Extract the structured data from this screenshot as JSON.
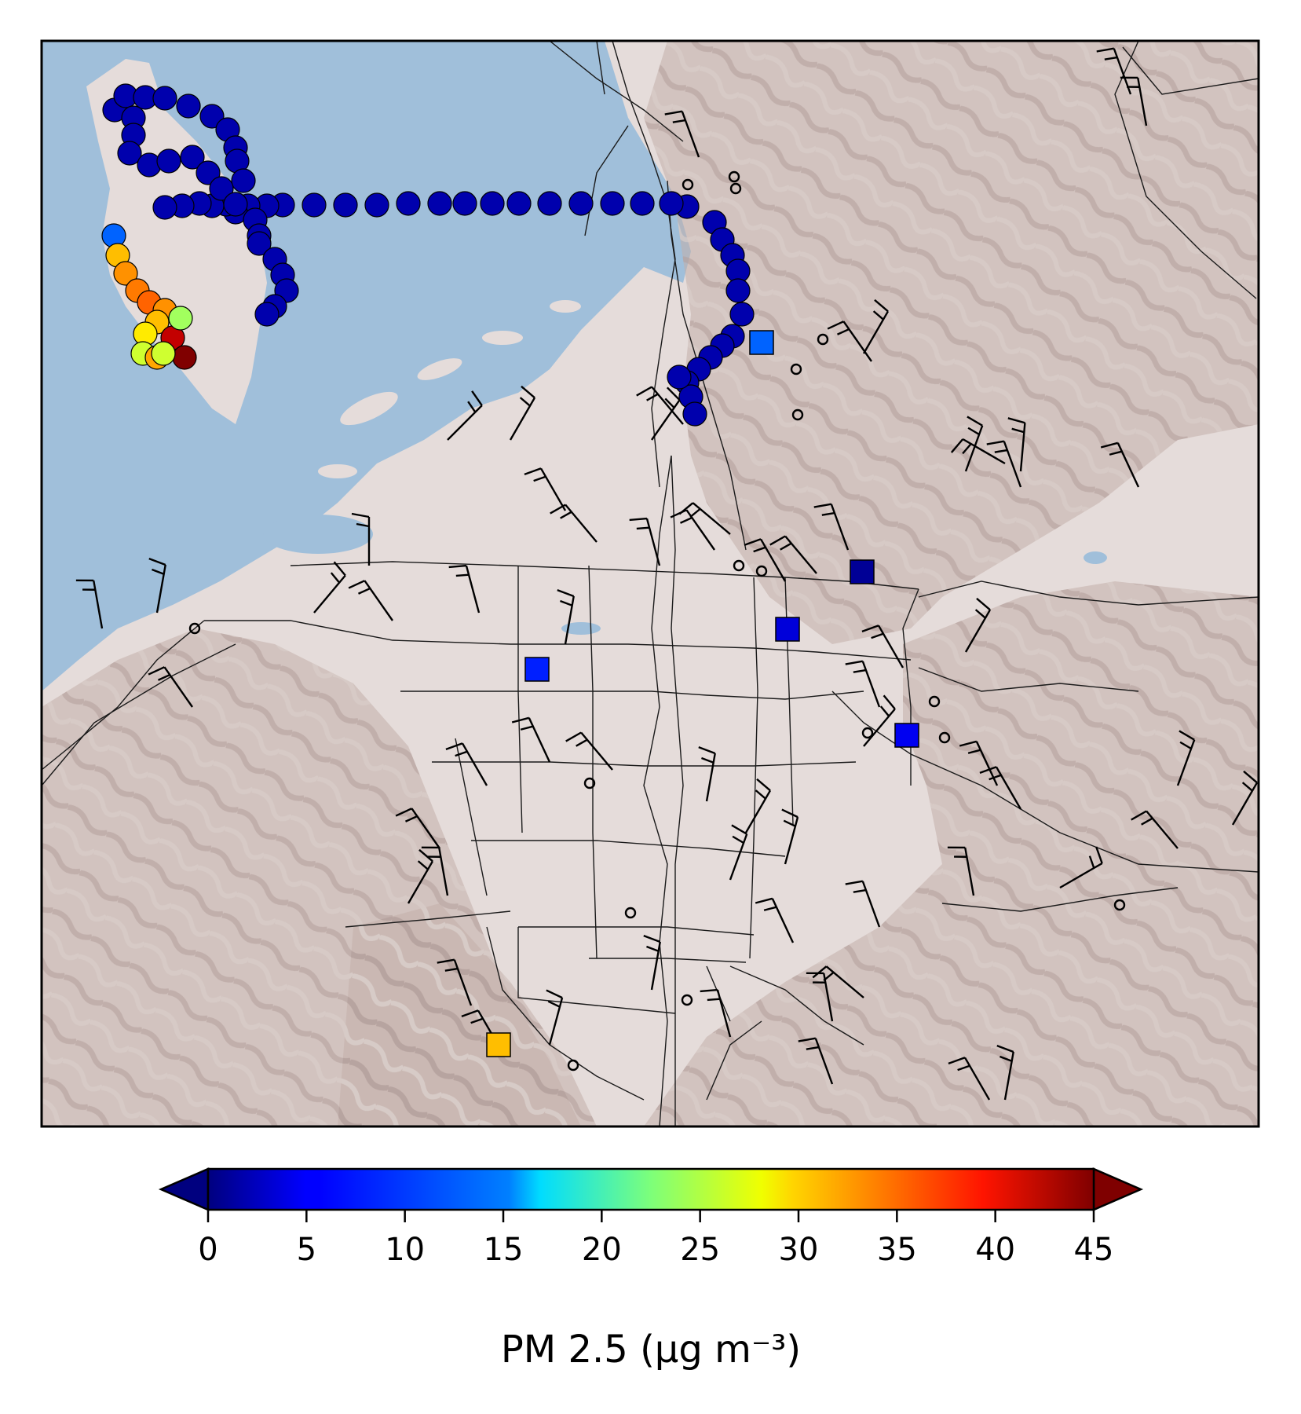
{
  "colorbar": {
    "label": "PM 2.5 (μg m⁻³)",
    "min": 0,
    "max": 45,
    "ticks": [
      "0",
      "5",
      "10",
      "15",
      "20",
      "25",
      "30",
      "35",
      "40",
      "45"
    ],
    "colormap": "jet",
    "extend": "both"
  },
  "map": {
    "water_color": "#a0bfda",
    "land_color": "#e5dcda",
    "relief_color": "#c2aeaa",
    "road_color": "#1a1a1a"
  },
  "mobile_track": {
    "marker": "circle",
    "pm25": [
      2,
      2,
      2,
      2,
      2,
      2,
      2,
      2,
      2,
      2,
      2,
      2,
      2,
      2,
      2,
      2,
      2,
      2,
      2,
      2,
      2,
      2,
      2,
      2,
      2,
      2,
      2,
      2,
      2,
      2,
      2,
      2,
      2,
      2,
      2,
      2,
      2,
      2,
      2,
      2,
      2,
      2,
      2,
      2,
      2,
      2,
      2,
      2,
      2,
      2,
      2,
      2,
      2,
      2,
      2,
      2,
      2,
      2,
      2,
      2,
      2,
      2,
      2,
      2,
      10,
      31,
      33,
      34,
      35,
      33,
      31,
      29,
      26,
      42,
      24,
      32,
      45,
      26
    ]
  },
  "stations": {
    "marker": "square",
    "pm25": [
      10,
      1,
      4,
      7,
      5,
      31
    ]
  }
}
